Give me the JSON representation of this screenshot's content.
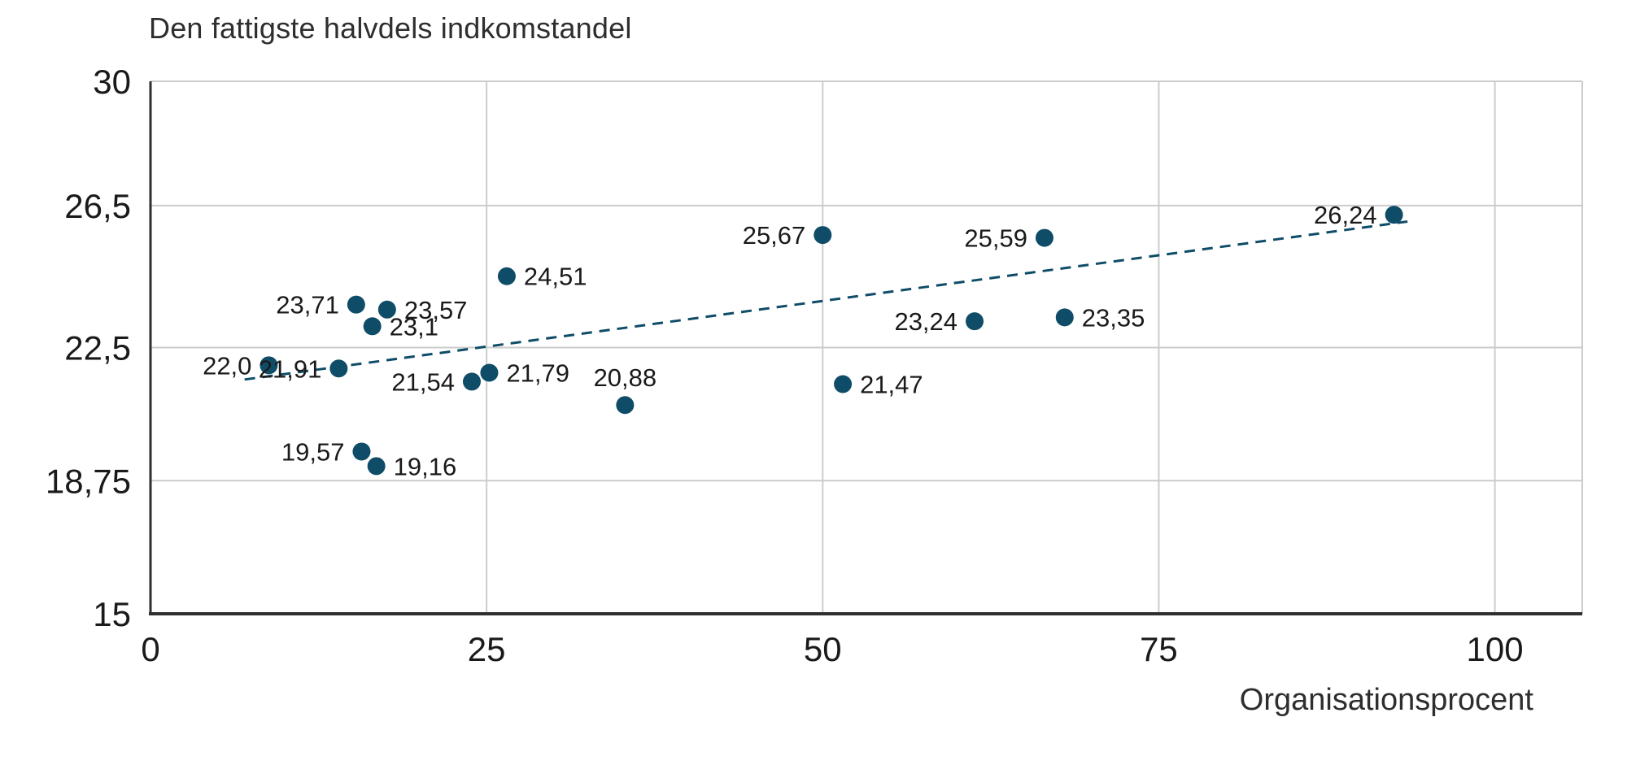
{
  "chart_data": {
    "type": "scatter",
    "title": "Den fattigste halvdels indkomstandel",
    "xlabel": "Organisationsprocent",
    "ylabel": "Den fattigste halvdels indkomstandel",
    "xlim": [
      0,
      106.5
    ],
    "ylim": [
      15,
      30
    ],
    "grid": "on",
    "x_ticks": [
      {
        "value": 0,
        "label": "0"
      },
      {
        "value": 25,
        "label": "25"
      },
      {
        "value": 50,
        "label": "50"
      },
      {
        "value": 75,
        "label": "75"
      },
      {
        "value": 100,
        "label": "100"
      }
    ],
    "y_ticks": [
      {
        "value": 30,
        "label": "30"
      },
      {
        "value": 26.5,
        "label": "26,5"
      },
      {
        "value": 22.5,
        "label": "22,5"
      },
      {
        "value": 18.75,
        "label": "18,75"
      },
      {
        "value": 15,
        "label": "15"
      }
    ],
    "points": [
      {
        "x": 8.8,
        "y": 22.0,
        "label": "22,0",
        "label_side": "left"
      },
      {
        "x": 14.0,
        "y": 21.91,
        "label": "21,91",
        "label_side": "left"
      },
      {
        "x": 15.3,
        "y": 23.71,
        "label": "23,71",
        "label_side": "left"
      },
      {
        "x": 16.5,
        "y": 23.1,
        "label": "23,1",
        "label_side": "right"
      },
      {
        "x": 17.6,
        "y": 23.57,
        "label": "23,57",
        "label_side": "right"
      },
      {
        "x": 15.7,
        "y": 19.57,
        "label": "19,57",
        "label_side": "left"
      },
      {
        "x": 16.8,
        "y": 19.16,
        "label": "19,16",
        "label_side": "right"
      },
      {
        "x": 23.9,
        "y": 21.54,
        "label": "21,54",
        "label_side": "left"
      },
      {
        "x": 25.2,
        "y": 21.79,
        "label": "21,79",
        "label_side": "right"
      },
      {
        "x": 26.5,
        "y": 24.51,
        "label": "24,51",
        "label_side": "right"
      },
      {
        "x": 35.3,
        "y": 20.88,
        "label": "20,88",
        "label_side": "above"
      },
      {
        "x": 50.0,
        "y": 25.67,
        "label": "25,67",
        "label_side": "left"
      },
      {
        "x": 51.5,
        "y": 21.47,
        "label": "21,47",
        "label_side": "right"
      },
      {
        "x": 61.3,
        "y": 23.24,
        "label": "23,24",
        "label_side": "left"
      },
      {
        "x": 66.5,
        "y": 25.59,
        "label": "25,59",
        "label_side": "left"
      },
      {
        "x": 68.0,
        "y": 23.35,
        "label": "23,35",
        "label_side": "right"
      },
      {
        "x": 92.5,
        "y": 26.24,
        "label": "26,24",
        "label_side": "left"
      }
    ],
    "trendline": {
      "x1": 7.0,
      "y1": 21.6,
      "x2": 93.5,
      "y2": 26.05,
      "style": "dashed"
    },
    "colors": {
      "point": "#0f4c67",
      "trend": "#0f4c67",
      "grid": "#cccccc",
      "axis": "#2f2f2f",
      "text": "#1a1a1a"
    }
  }
}
